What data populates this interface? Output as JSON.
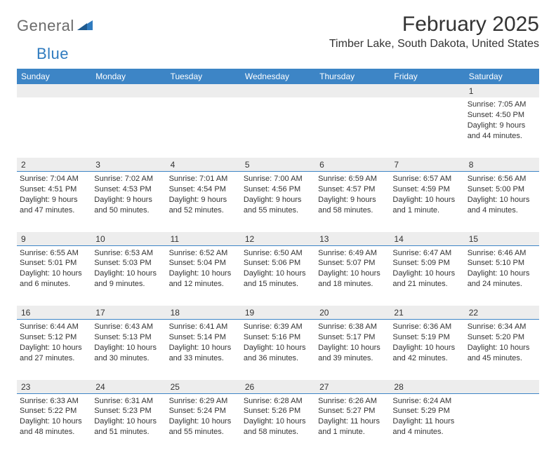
{
  "logo": {
    "text1": "General",
    "text2": "Blue"
  },
  "title": "February 2025",
  "location": "Timber Lake, South Dakota, United States",
  "colors": {
    "header_bg": "#3d85c6",
    "header_text": "#ffffff",
    "daynum_bg": "#ededed",
    "rule": "#3d85c6",
    "logo_gray": "#6b6b6b",
    "logo_blue": "#2f7bbf"
  },
  "day_names": [
    "Sunday",
    "Monday",
    "Tuesday",
    "Wednesday",
    "Thursday",
    "Friday",
    "Saturday"
  ],
  "weeks": [
    [
      null,
      null,
      null,
      null,
      null,
      null,
      {
        "n": "1",
        "sr": "Sunrise: 7:05 AM",
        "ss": "Sunset: 4:50 PM",
        "d1": "Daylight: 9 hours",
        "d2": "and 44 minutes."
      }
    ],
    [
      {
        "n": "2",
        "sr": "Sunrise: 7:04 AM",
        "ss": "Sunset: 4:51 PM",
        "d1": "Daylight: 9 hours",
        "d2": "and 47 minutes."
      },
      {
        "n": "3",
        "sr": "Sunrise: 7:02 AM",
        "ss": "Sunset: 4:53 PM",
        "d1": "Daylight: 9 hours",
        "d2": "and 50 minutes."
      },
      {
        "n": "4",
        "sr": "Sunrise: 7:01 AM",
        "ss": "Sunset: 4:54 PM",
        "d1": "Daylight: 9 hours",
        "d2": "and 52 minutes."
      },
      {
        "n": "5",
        "sr": "Sunrise: 7:00 AM",
        "ss": "Sunset: 4:56 PM",
        "d1": "Daylight: 9 hours",
        "d2": "and 55 minutes."
      },
      {
        "n": "6",
        "sr": "Sunrise: 6:59 AM",
        "ss": "Sunset: 4:57 PM",
        "d1": "Daylight: 9 hours",
        "d2": "and 58 minutes."
      },
      {
        "n": "7",
        "sr": "Sunrise: 6:57 AM",
        "ss": "Sunset: 4:59 PM",
        "d1": "Daylight: 10 hours",
        "d2": "and 1 minute."
      },
      {
        "n": "8",
        "sr": "Sunrise: 6:56 AM",
        "ss": "Sunset: 5:00 PM",
        "d1": "Daylight: 10 hours",
        "d2": "and 4 minutes."
      }
    ],
    [
      {
        "n": "9",
        "sr": "Sunrise: 6:55 AM",
        "ss": "Sunset: 5:01 PM",
        "d1": "Daylight: 10 hours",
        "d2": "and 6 minutes."
      },
      {
        "n": "10",
        "sr": "Sunrise: 6:53 AM",
        "ss": "Sunset: 5:03 PM",
        "d1": "Daylight: 10 hours",
        "d2": "and 9 minutes."
      },
      {
        "n": "11",
        "sr": "Sunrise: 6:52 AM",
        "ss": "Sunset: 5:04 PM",
        "d1": "Daylight: 10 hours",
        "d2": "and 12 minutes."
      },
      {
        "n": "12",
        "sr": "Sunrise: 6:50 AM",
        "ss": "Sunset: 5:06 PM",
        "d1": "Daylight: 10 hours",
        "d2": "and 15 minutes."
      },
      {
        "n": "13",
        "sr": "Sunrise: 6:49 AM",
        "ss": "Sunset: 5:07 PM",
        "d1": "Daylight: 10 hours",
        "d2": "and 18 minutes."
      },
      {
        "n": "14",
        "sr": "Sunrise: 6:47 AM",
        "ss": "Sunset: 5:09 PM",
        "d1": "Daylight: 10 hours",
        "d2": "and 21 minutes."
      },
      {
        "n": "15",
        "sr": "Sunrise: 6:46 AM",
        "ss": "Sunset: 5:10 PM",
        "d1": "Daylight: 10 hours",
        "d2": "and 24 minutes."
      }
    ],
    [
      {
        "n": "16",
        "sr": "Sunrise: 6:44 AM",
        "ss": "Sunset: 5:12 PM",
        "d1": "Daylight: 10 hours",
        "d2": "and 27 minutes."
      },
      {
        "n": "17",
        "sr": "Sunrise: 6:43 AM",
        "ss": "Sunset: 5:13 PM",
        "d1": "Daylight: 10 hours",
        "d2": "and 30 minutes."
      },
      {
        "n": "18",
        "sr": "Sunrise: 6:41 AM",
        "ss": "Sunset: 5:14 PM",
        "d1": "Daylight: 10 hours",
        "d2": "and 33 minutes."
      },
      {
        "n": "19",
        "sr": "Sunrise: 6:39 AM",
        "ss": "Sunset: 5:16 PM",
        "d1": "Daylight: 10 hours",
        "d2": "and 36 minutes."
      },
      {
        "n": "20",
        "sr": "Sunrise: 6:38 AM",
        "ss": "Sunset: 5:17 PM",
        "d1": "Daylight: 10 hours",
        "d2": "and 39 minutes."
      },
      {
        "n": "21",
        "sr": "Sunrise: 6:36 AM",
        "ss": "Sunset: 5:19 PM",
        "d1": "Daylight: 10 hours",
        "d2": "and 42 minutes."
      },
      {
        "n": "22",
        "sr": "Sunrise: 6:34 AM",
        "ss": "Sunset: 5:20 PM",
        "d1": "Daylight: 10 hours",
        "d2": "and 45 minutes."
      }
    ],
    [
      {
        "n": "23",
        "sr": "Sunrise: 6:33 AM",
        "ss": "Sunset: 5:22 PM",
        "d1": "Daylight: 10 hours",
        "d2": "and 48 minutes."
      },
      {
        "n": "24",
        "sr": "Sunrise: 6:31 AM",
        "ss": "Sunset: 5:23 PM",
        "d1": "Daylight: 10 hours",
        "d2": "and 51 minutes."
      },
      {
        "n": "25",
        "sr": "Sunrise: 6:29 AM",
        "ss": "Sunset: 5:24 PM",
        "d1": "Daylight: 10 hours",
        "d2": "and 55 minutes."
      },
      {
        "n": "26",
        "sr": "Sunrise: 6:28 AM",
        "ss": "Sunset: 5:26 PM",
        "d1": "Daylight: 10 hours",
        "d2": "and 58 minutes."
      },
      {
        "n": "27",
        "sr": "Sunrise: 6:26 AM",
        "ss": "Sunset: 5:27 PM",
        "d1": "Daylight: 11 hours",
        "d2": "and 1 minute."
      },
      {
        "n": "28",
        "sr": "Sunrise: 6:24 AM",
        "ss": "Sunset: 5:29 PM",
        "d1": "Daylight: 11 hours",
        "d2": "and 4 minutes."
      },
      null
    ]
  ]
}
